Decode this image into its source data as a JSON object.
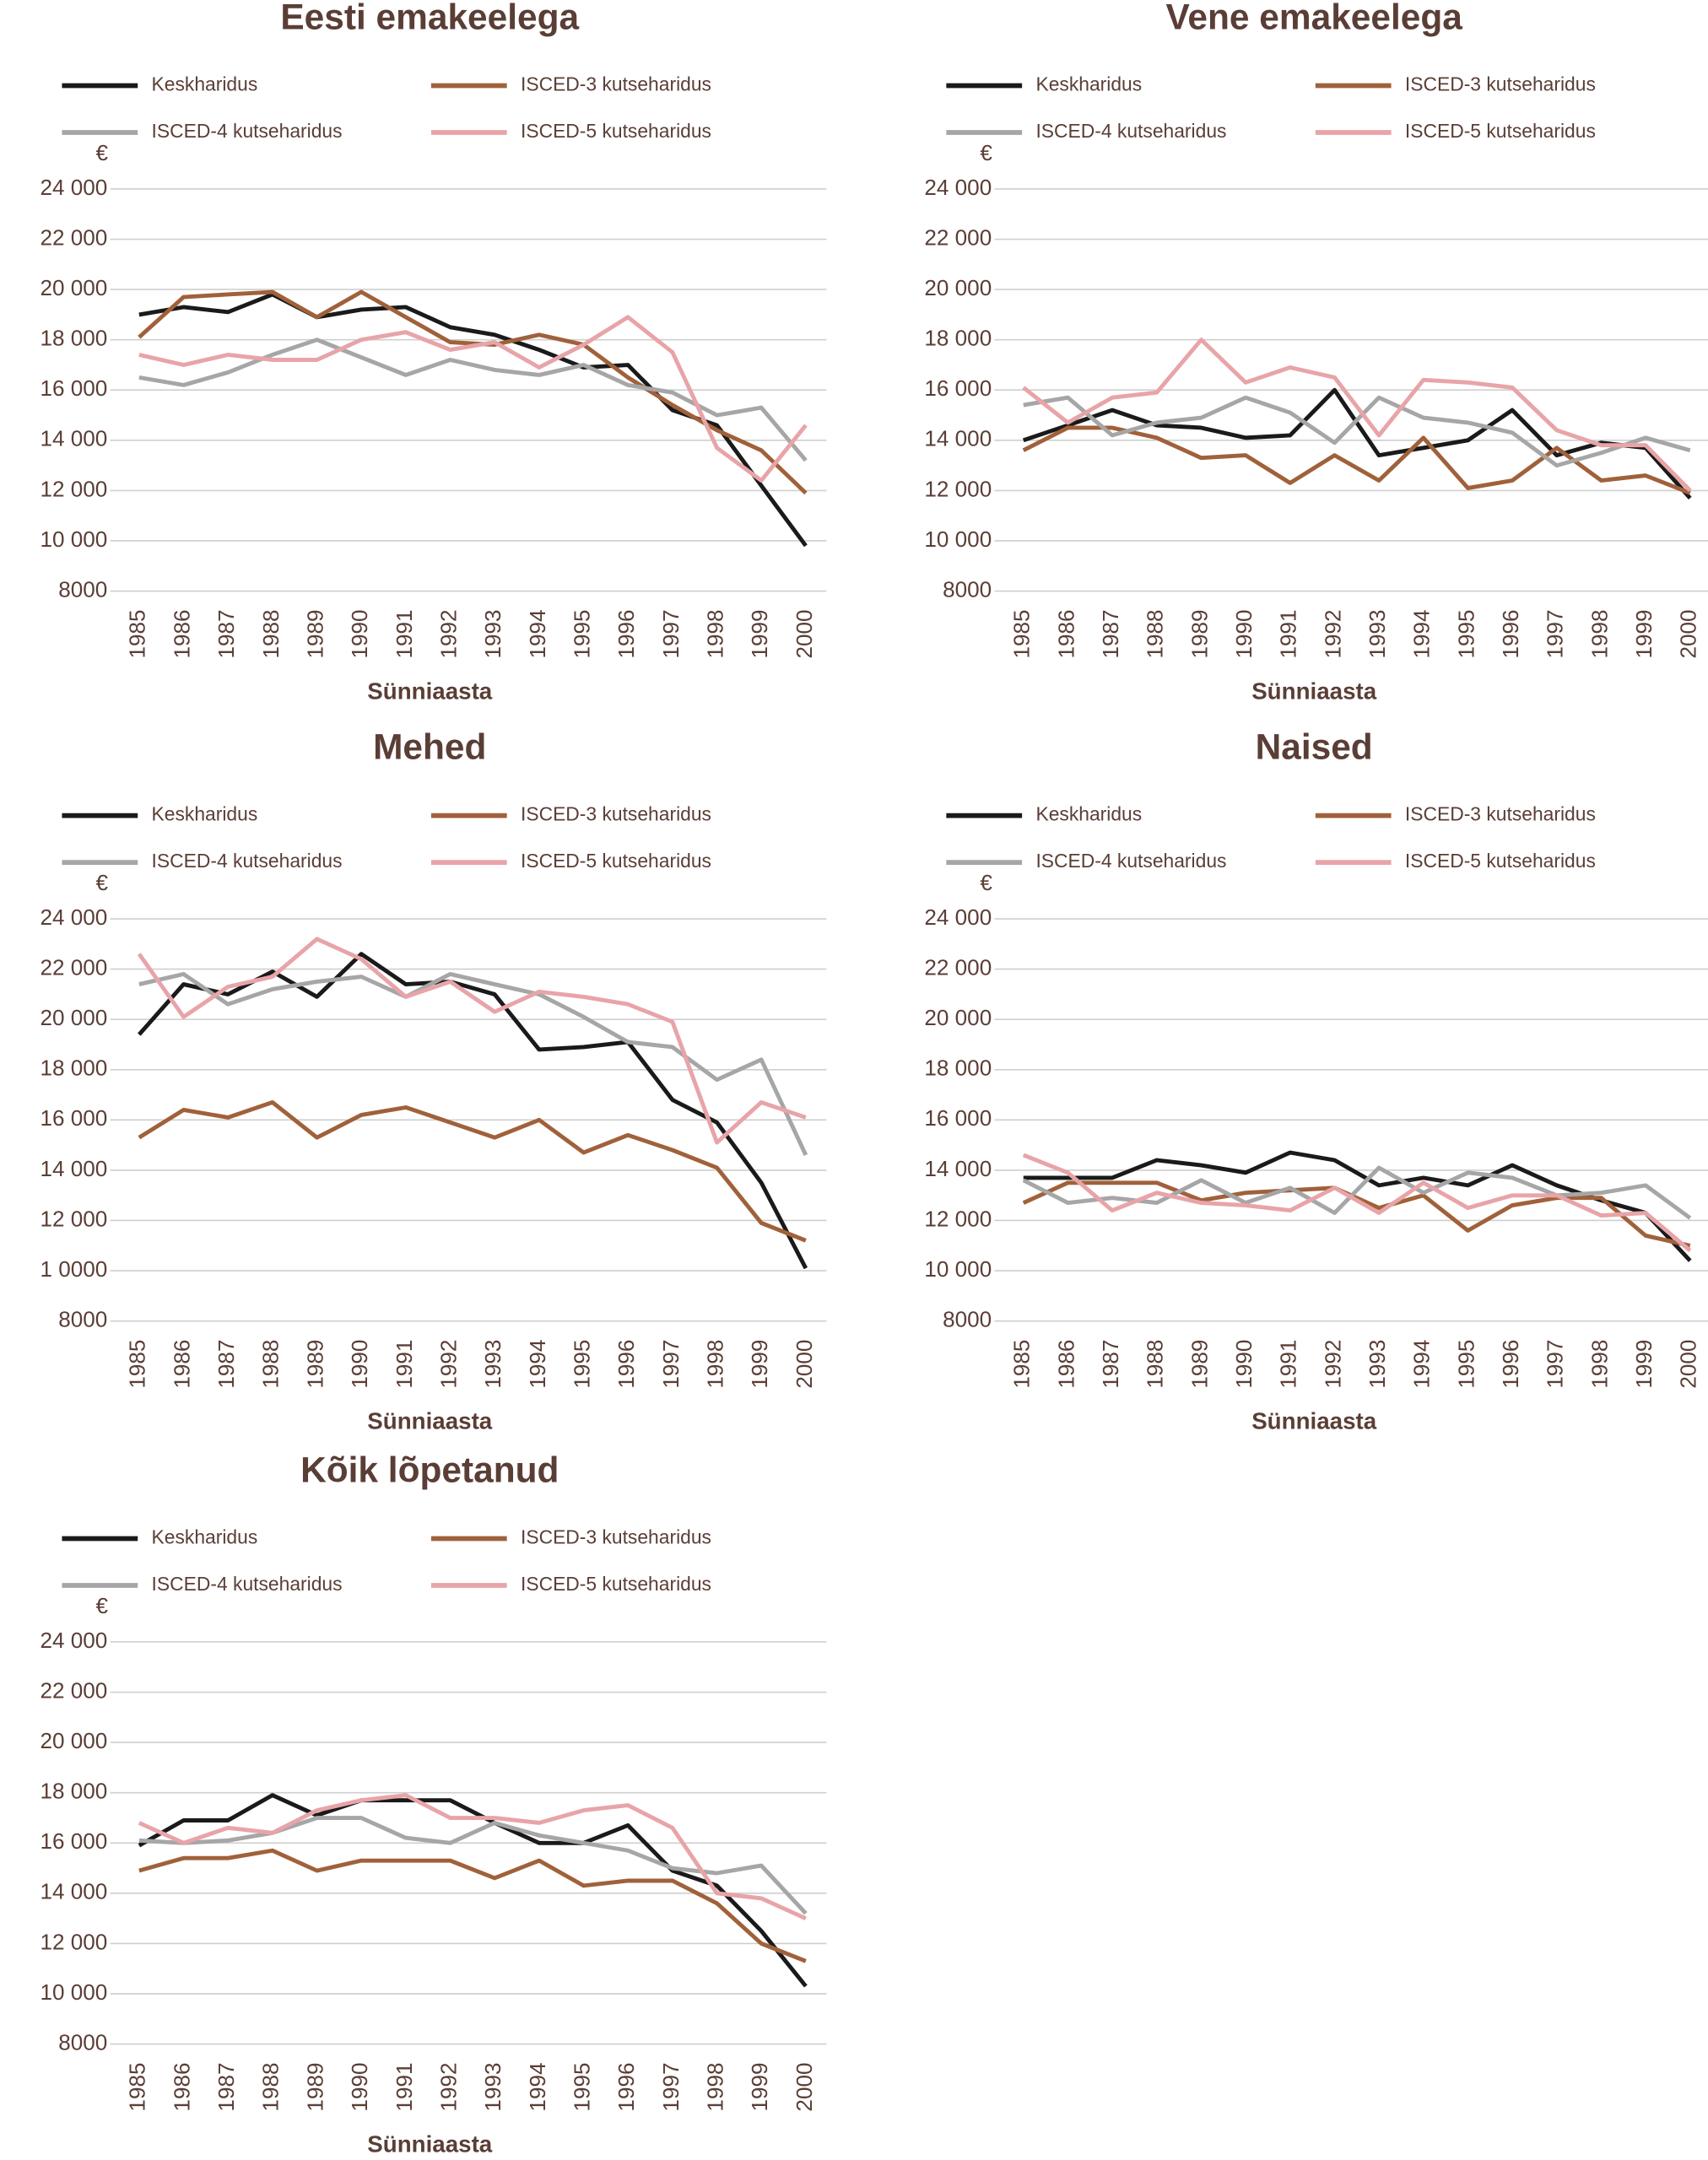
{
  "chart_data": [
    {
      "type": "line",
      "title": "Eesti emakeelega",
      "y_label": "€",
      "x_label": "Sünniaasta",
      "categories": [
        "1985",
        "1986",
        "1987",
        "1988",
        "1989",
        "1990",
        "1991",
        "1992",
        "1993",
        "1994",
        "1995",
        "1996",
        "1997",
        "1998",
        "1999",
        "2000"
      ],
      "ylim": [
        8000,
        24000
      ],
      "yticks": [
        8000,
        {
          "value": 10000,
          "label": "10 000"
        },
        {
          "value": 12000,
          "label": "12 000"
        },
        {
          "value": 14000,
          "label": "14 000"
        },
        {
          "value": 16000,
          "label": "16 000"
        },
        {
          "value": 18000,
          "label": "18 000"
        },
        {
          "value": 20000,
          "label": "20 000"
        },
        {
          "value": 22000,
          "label": "22 000"
        },
        {
          "value": 24000,
          "label": "24 000"
        }
      ],
      "grid": true,
      "series": [
        {
          "name": "Keskharidus",
          "color": "#1a1a1a",
          "values": [
            19000,
            19300,
            19100,
            19800,
            18900,
            19200,
            19300,
            18500,
            18200,
            17600,
            16900,
            17000,
            15200,
            14600,
            12200,
            9800
          ]
        },
        {
          "name": "ISCED-3 kutseharidus",
          "color": "#a0613a",
          "values": [
            18100,
            19700,
            19800,
            19900,
            18900,
            19900,
            18900,
            17900,
            17800,
            18200,
            17800,
            16500,
            15400,
            14400,
            13600,
            11900
          ]
        },
        {
          "name": "ISCED-4 kutseharidus",
          "color": "#a6a6a6",
          "values": [
            16500,
            16200,
            16700,
            17400,
            18000,
            17300,
            16600,
            17200,
            16800,
            16600,
            17000,
            16200,
            15900,
            15000,
            15300,
            13200
          ]
        },
        {
          "name": "ISCED-5 kutseharidus",
          "color": "#e8a4a8",
          "values": [
            17400,
            17000,
            17400,
            17200,
            17200,
            18000,
            18300,
            17600,
            17900,
            16900,
            17800,
            18900,
            17500,
            13700,
            12400,
            14600
          ]
        }
      ]
    },
    {
      "type": "line",
      "title": "Vene emakeelega",
      "y_label": "€",
      "x_label": "Sünniaasta",
      "categories": [
        "1985",
        "1986",
        "1987",
        "1988",
        "1989",
        "1990",
        "1991",
        "1992",
        "1993",
        "1994",
        "1995",
        "1996",
        "1997",
        "1998",
        "1999",
        "2000"
      ],
      "ylim": [
        8000,
        24000
      ],
      "yticks": [
        8000,
        {
          "value": 10000,
          "label": "10 000"
        },
        {
          "value": 12000,
          "label": "12 000"
        },
        {
          "value": 14000,
          "label": "14 000"
        },
        {
          "value": 16000,
          "label": "16 000"
        },
        {
          "value": 18000,
          "label": "18 000"
        },
        {
          "value": 20000,
          "label": "20 000"
        },
        {
          "value": 22000,
          "label": "22 000"
        },
        {
          "value": 24000,
          "label": "24 000"
        }
      ],
      "grid": true,
      "series": [
        {
          "name": "Keskharidus",
          "color": "#1a1a1a",
          "values": [
            14000,
            14600,
            15200,
            14600,
            14500,
            14100,
            14200,
            16000,
            13400,
            13700,
            14000,
            15200,
            13400,
            13900,
            13700,
            11700
          ]
        },
        {
          "name": "ISCED-3 kutseharidus",
          "color": "#a0613a",
          "values": [
            13600,
            14500,
            14500,
            14100,
            13300,
            13400,
            12300,
            13400,
            12400,
            14100,
            12100,
            12400,
            13700,
            12400,
            12600,
            11900
          ]
        },
        {
          "name": "ISCED-4 kutseharidus",
          "color": "#a6a6a6",
          "values": [
            15400,
            15700,
            14200,
            14700,
            14900,
            15700,
            15100,
            13900,
            15700,
            14900,
            14700,
            14300,
            13000,
            13500,
            14100,
            13600
          ]
        },
        {
          "name": "ISCED-5 kutseharidus",
          "color": "#e8a4a8",
          "values": [
            16100,
            14700,
            15700,
            15900,
            18000,
            16300,
            16900,
            16500,
            14200,
            16400,
            16300,
            16100,
            14400,
            13800,
            13800,
            12000
          ]
        }
      ]
    },
    {
      "type": "line",
      "title": "Mehed",
      "y_label": "€",
      "x_label": "Sünniaasta",
      "categories": [
        "1985",
        "1986",
        "1987",
        "1988",
        "1989",
        "1990",
        "1991",
        "1992",
        "1993",
        "1994",
        "1995",
        "1996",
        "1997",
        "1998",
        "1999",
        "2000"
      ],
      "ylim": [
        8000,
        24000
      ],
      "yticks": [
        8000,
        {
          "value": 10000,
          "label": "1 0000"
        },
        {
          "value": 12000,
          "label": "12 000"
        },
        {
          "value": 14000,
          "label": "14 000"
        },
        {
          "value": 16000,
          "label": "16 000"
        },
        {
          "value": 18000,
          "label": "18 000"
        },
        {
          "value": 20000,
          "label": "20 000"
        },
        {
          "value": 22000,
          "label": "22 000"
        },
        {
          "value": 24000,
          "label": "24 000"
        }
      ],
      "grid": true,
      "series": [
        {
          "name": "Keskharidus",
          "color": "#1a1a1a",
          "values": [
            19400,
            21400,
            21000,
            21900,
            20900,
            22600,
            21400,
            21500,
            21000,
            18800,
            18900,
            19100,
            16800,
            15900,
            13500,
            10100
          ]
        },
        {
          "name": "ISCED-3 kutseharidus",
          "color": "#a0613a",
          "values": [
            15300,
            16400,
            16100,
            16700,
            15300,
            16200,
            16500,
            15900,
            15300,
            16000,
            14700,
            15400,
            14800,
            14100,
            11900,
            11200
          ]
        },
        {
          "name": "ISCED-4 kutseharidus",
          "color": "#a6a6a6",
          "values": [
            21400,
            21800,
            20600,
            21200,
            21500,
            21700,
            20900,
            21800,
            21400,
            21000,
            20100,
            19100,
            18900,
            17600,
            18400,
            14600
          ]
        },
        {
          "name": "ISCED-5 kutseharidus",
          "color": "#e8a4a8",
          "values": [
            22600,
            20100,
            21300,
            21700,
            23200,
            22400,
            20900,
            21500,
            20300,
            21100,
            20900,
            20600,
            19900,
            15100,
            16700,
            16100
          ]
        }
      ]
    },
    {
      "type": "line",
      "title": "Naised",
      "y_label": "€",
      "x_label": "Sünniaasta",
      "categories": [
        "1985",
        "1986",
        "1987",
        "1988",
        "1989",
        "1990",
        "1991",
        "1992",
        "1993",
        "1994",
        "1995",
        "1996",
        "1997",
        "1998",
        "1999",
        "2000"
      ],
      "ylim": [
        8000,
        24000
      ],
      "yticks": [
        8000,
        {
          "value": 10000,
          "label": "10 000"
        },
        {
          "value": 12000,
          "label": "12 000"
        },
        {
          "value": 14000,
          "label": "14 000"
        },
        {
          "value": 16000,
          "label": "16 000"
        },
        {
          "value": 18000,
          "label": "18 000"
        },
        {
          "value": 20000,
          "label": "20 000"
        },
        {
          "value": 22000,
          "label": "22 000"
        },
        {
          "value": 24000,
          "label": "24 000"
        }
      ],
      "grid": true,
      "series": [
        {
          "name": "Keskharidus",
          "color": "#1a1a1a",
          "values": [
            13700,
            13700,
            13700,
            14400,
            14200,
            13900,
            14700,
            14400,
            13400,
            13700,
            13400,
            14200,
            13400,
            12800,
            12300,
            10400
          ]
        },
        {
          "name": "ISCED-3 kutseharidus",
          "color": "#a0613a",
          "values": [
            12700,
            13500,
            13500,
            13500,
            12800,
            13100,
            13200,
            13300,
            12500,
            13000,
            11600,
            12600,
            12900,
            12900,
            11400,
            11000
          ]
        },
        {
          "name": "ISCED-4 kutseharidus",
          "color": "#a6a6a6",
          "values": [
            13600,
            12700,
            12900,
            12700,
            13600,
            12700,
            13300,
            12300,
            14100,
            13100,
            13900,
            13700,
            13000,
            13100,
            13400,
            12100
          ]
        },
        {
          "name": "ISCED-5 kutseharidus",
          "color": "#e8a4a8",
          "values": [
            14600,
            13900,
            12400,
            13100,
            12700,
            12600,
            12400,
            13300,
            12300,
            13500,
            12500,
            13000,
            13000,
            12200,
            12300,
            10800
          ]
        }
      ]
    },
    {
      "type": "line",
      "title": "Kõik lõpetanud",
      "y_label": "€",
      "x_label": "Sünniaasta",
      "categories": [
        "1985",
        "1986",
        "1987",
        "1988",
        "1989",
        "1990",
        "1991",
        "1992",
        "1993",
        "1994",
        "1995",
        "1996",
        "1997",
        "1998",
        "1999",
        "2000"
      ],
      "ylim": [
        8000,
        24000
      ],
      "yticks": [
        8000,
        {
          "value": 10000,
          "label": "10 000"
        },
        {
          "value": 12000,
          "label": "12 000"
        },
        {
          "value": 14000,
          "label": "14 000"
        },
        {
          "value": 16000,
          "label": "16 000"
        },
        {
          "value": 18000,
          "label": "18 000"
        },
        {
          "value": 20000,
          "label": "20 000"
        },
        {
          "value": 22000,
          "label": "22 000"
        },
        {
          "value": 24000,
          "label": "24 000"
        }
      ],
      "grid": true,
      "series": [
        {
          "name": "Keskharidus",
          "color": "#1a1a1a",
          "values": [
            15900,
            16900,
            16900,
            17900,
            17100,
            17700,
            17700,
            17700,
            16800,
            16000,
            16000,
            16700,
            14900,
            14300,
            12500,
            10300
          ]
        },
        {
          "name": "ISCED-3 kutseharidus",
          "color": "#a0613a",
          "values": [
            14900,
            15400,
            15400,
            15700,
            14900,
            15300,
            15300,
            15300,
            14600,
            15300,
            14300,
            14500,
            14500,
            13600,
            12000,
            11300
          ]
        },
        {
          "name": "ISCED-4 kutseharidus",
          "color": "#a6a6a6",
          "values": [
            16100,
            16000,
            16100,
            16400,
            17000,
            17000,
            16200,
            16000,
            16800,
            16300,
            16000,
            15700,
            15000,
            14800,
            15100,
            13200
          ]
        },
        {
          "name": "ISCED-5 kutseharidus",
          "color": "#e8a4a8",
          "values": [
            16800,
            16000,
            16600,
            16400,
            17300,
            17700,
            17900,
            17000,
            17000,
            16800,
            17300,
            17500,
            16600,
            14000,
            13800,
            13000
          ]
        }
      ]
    }
  ]
}
